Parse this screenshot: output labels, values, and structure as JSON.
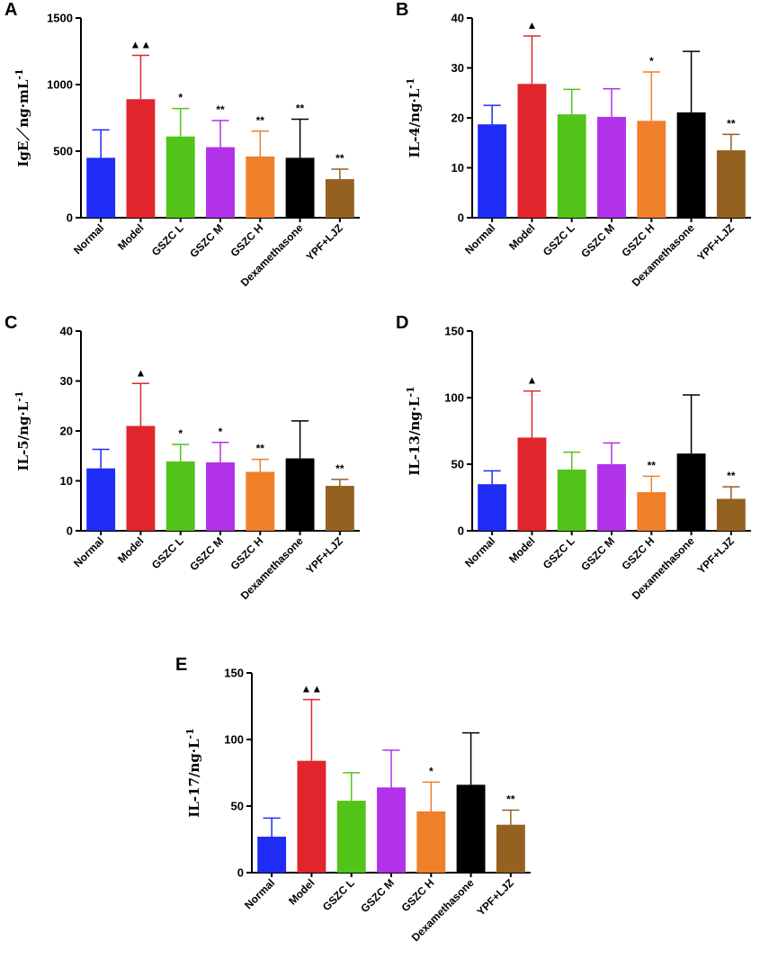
{
  "chart_data": [
    {
      "panel": "A",
      "type": "bar",
      "ylabel": "IgE／ng·mL",
      "ylabel_sup": "-1",
      "ylim": [
        0,
        1500
      ],
      "yticks": [
        0,
        500,
        1000,
        1500
      ],
      "categories": [
        "Normal",
        "Model",
        "GSZC L",
        "GSZC M",
        "GSZC H",
        "Dexamethasone",
        "YPF+LJZ"
      ],
      "values": [
        450,
        890,
        610,
        530,
        460,
        450,
        290
      ],
      "errors": [
        210,
        330,
        210,
        200,
        190,
        290,
        75
      ],
      "annotations": [
        "",
        "▲▲",
        "*",
        "**",
        "**",
        "**",
        "**"
      ],
      "colors": [
        "#1f2cf5",
        "#e0262c",
        "#52c41a",
        "#b132e8",
        "#f07f2a",
        "#000000",
        "#956121"
      ]
    },
    {
      "panel": "B",
      "type": "bar",
      "ylabel": "IL-4/ng·L",
      "ylabel_sup": "-1",
      "ylim": [
        0,
        40
      ],
      "yticks": [
        0,
        10,
        20,
        30,
        40
      ],
      "categories": [
        "Normal",
        "Model",
        "GSZC L",
        "GSZC M",
        "GSZC H",
        "Dexamethasone",
        "YPF+LJZ"
      ],
      "values": [
        18.7,
        26.8,
        20.7,
        20.2,
        19.4,
        21.1,
        13.5
      ],
      "errors": [
        3.8,
        9.6,
        5.0,
        5.6,
        9.8,
        12.2,
        3.2
      ],
      "annotations": [
        "",
        "▲",
        "",
        "",
        "*",
        "",
        "**"
      ],
      "colors": [
        "#1f2cf5",
        "#e0262c",
        "#52c41a",
        "#b132e8",
        "#f07f2a",
        "#000000",
        "#956121"
      ]
    },
    {
      "panel": "C",
      "type": "bar",
      "ylabel": "IL-5/ng·L",
      "ylabel_sup": "-1",
      "ylim": [
        0,
        40
      ],
      "yticks": [
        0,
        10,
        20,
        30,
        40
      ],
      "categories": [
        "Normal",
        "Model",
        "GSZC L",
        "GSZC M",
        "GSZC H",
        "Dexamethasone",
        "YPF+LJZ"
      ],
      "values": [
        12.5,
        21.0,
        13.9,
        13.7,
        11.8,
        14.5,
        9.0
      ],
      "errors": [
        3.8,
        8.5,
        3.4,
        4.0,
        2.5,
        7.5,
        1.3
      ],
      "annotations": [
        "",
        "▲",
        "*",
        "*",
        "**",
        "",
        "**"
      ],
      "colors": [
        "#1f2cf5",
        "#e0262c",
        "#52c41a",
        "#b132e8",
        "#f07f2a",
        "#000000",
        "#956121"
      ]
    },
    {
      "panel": "D",
      "type": "bar",
      "ylabel": "IL-13/ng·L",
      "ylabel_sup": "-1",
      "ylim": [
        0,
        150
      ],
      "yticks": [
        0,
        50,
        100,
        150
      ],
      "categories": [
        "Normal",
        "Model",
        "GSZC L",
        "GSZC M",
        "GSZC H",
        "Dexamethasone",
        "YPF+LJZ"
      ],
      "values": [
        35,
        70,
        46,
        50,
        29,
        58,
        24
      ],
      "errors": [
        10,
        35,
        13,
        16,
        12,
        44,
        9
      ],
      "annotations": [
        "",
        "▲",
        "",
        "",
        "**",
        "",
        "**"
      ],
      "colors": [
        "#1f2cf5",
        "#e0262c",
        "#52c41a",
        "#b132e8",
        "#f07f2a",
        "#000000",
        "#956121"
      ]
    },
    {
      "panel": "E",
      "type": "bar",
      "ylabel": "IL-17/ng·L",
      "ylabel_sup": "-1",
      "ylim": [
        0,
        150
      ],
      "yticks": [
        0,
        50,
        100,
        150
      ],
      "categories": [
        "Normal",
        "Model",
        "GSZC L",
        "GSZC M",
        "GSZC H",
        "Dexamethasone",
        "YPF+LJZ"
      ],
      "values": [
        27,
        84,
        54,
        64,
        46,
        66,
        36
      ],
      "errors": [
        14,
        46,
        21,
        28,
        22,
        39,
        11
      ],
      "annotations": [
        "",
        "▲▲",
        "",
        "",
        "*",
        "",
        "**"
      ],
      "colors": [
        "#1f2cf5",
        "#e0262c",
        "#52c41a",
        "#b132e8",
        "#f07f2a",
        "#000000",
        "#956121"
      ]
    }
  ]
}
